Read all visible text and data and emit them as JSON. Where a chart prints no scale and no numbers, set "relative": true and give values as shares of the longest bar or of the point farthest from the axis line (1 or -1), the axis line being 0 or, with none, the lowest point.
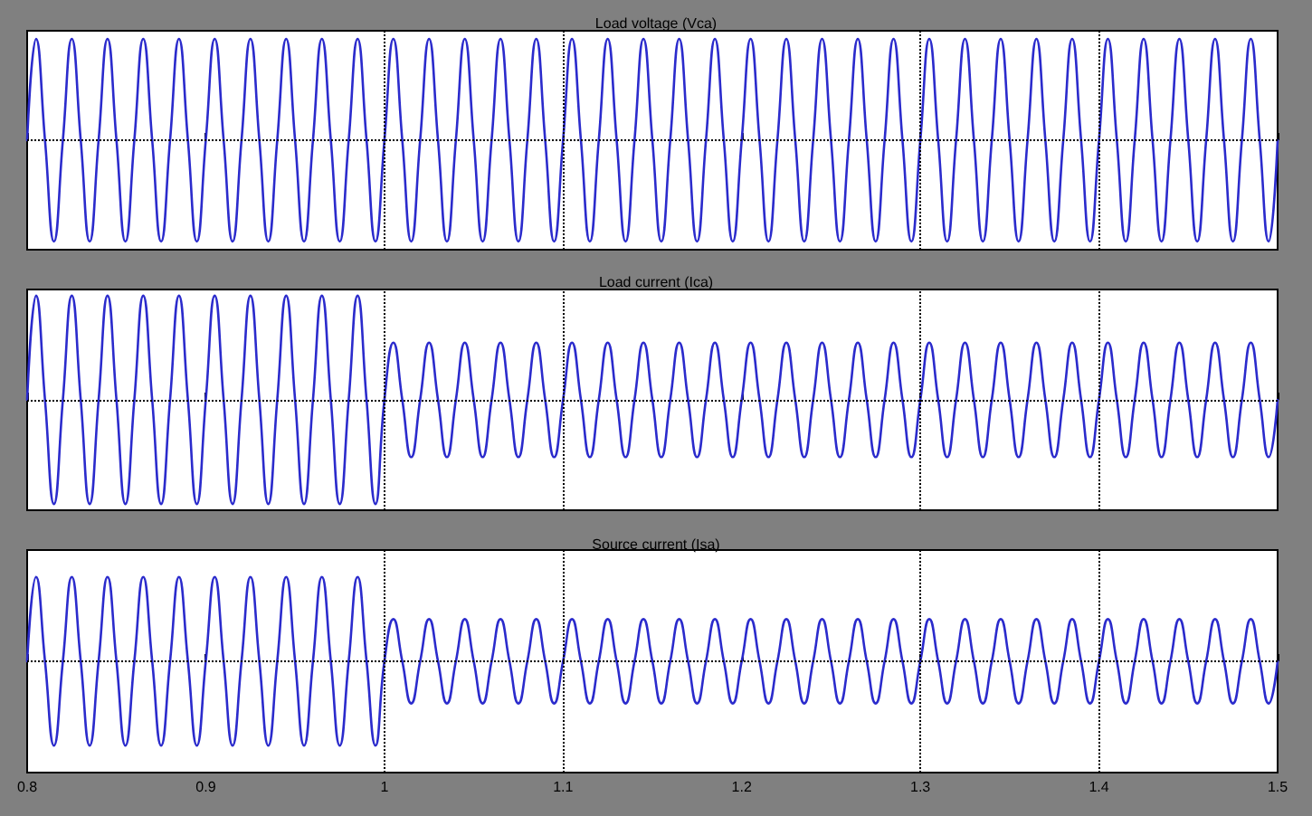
{
  "chart_data": [
    {
      "type": "line",
      "title": "Load voltage (Vca)",
      "relative": true,
      "color": "#2b2bcc",
      "line_style": "solid",
      "tick_labels": false,
      "xlim": [
        0.8,
        1.5
      ],
      "xticks": [
        0.8,
        0.9,
        1,
        1.1,
        1.2,
        1.3,
        1.4,
        1.5
      ],
      "ref_lines": [
        {
          "axis": "y",
          "value": 0,
          "color": "#000000",
          "line_style": "dotted"
        },
        {
          "axis": "x",
          "value": 1,
          "color": "#000000",
          "line_style": "dotted"
        },
        {
          "axis": "x",
          "value": 1.1,
          "color": "#000000",
          "line_style": "dotted"
        },
        {
          "axis": "x",
          "value": 1.3,
          "color": "#000000",
          "line_style": "dotted"
        },
        {
          "axis": "x",
          "value": 1.4,
          "color": "#000000",
          "line_style": "dotted"
        }
      ],
      "x": [
        0.8,
        0.805,
        0.81,
        0.815,
        0.82,
        0.825,
        0.83,
        0.835,
        0.84,
        0.845,
        0.85,
        0.855,
        0.86,
        0.865,
        0.87,
        0.875,
        0.88,
        0.885,
        0.89,
        0.895,
        0.9,
        0.905,
        0.91,
        0.915,
        0.92,
        0.925,
        0.93,
        0.935,
        0.94,
        0.945,
        0.95,
        0.955,
        0.96,
        0.965,
        0.97,
        0.975,
        0.98,
        0.985,
        0.99,
        0.995,
        1,
        1.005,
        1.01,
        1.015,
        1.02,
        1.025,
        1.03,
        1.035,
        1.04,
        1.045,
        1.05,
        1.055,
        1.06,
        1.065,
        1.07,
        1.075,
        1.08,
        1.085,
        1.09,
        1.095,
        1.1,
        1.105,
        1.11,
        1.115,
        1.12,
        1.125,
        1.13,
        1.135,
        1.14,
        1.145,
        1.15,
        1.155,
        1.16,
        1.165,
        1.17,
        1.175,
        1.18,
        1.185,
        1.19,
        1.195,
        1.2,
        1.205,
        1.21,
        1.215,
        1.22,
        1.225,
        1.23,
        1.235,
        1.24,
        1.245,
        1.25,
        1.255,
        1.26,
        1.265,
        1.27,
        1.275,
        1.28,
        1.285,
        1.29,
        1.295,
        1.3,
        1.305,
        1.31,
        1.315,
        1.32,
        1.325,
        1.33,
        1.335,
        1.34,
        1.345,
        1.35,
        1.355,
        1.36,
        1.365,
        1.37,
        1.375,
        1.38,
        1.385,
        1.39,
        1.395,
        1.4,
        1.405,
        1.41,
        1.415,
        1.42,
        1.425,
        1.43,
        1.435,
        1.44,
        1.445,
        1.45,
        1.455,
        1.46,
        1.465,
        1.47,
        1.475,
        1.48,
        1.485,
        1.49,
        1.495,
        1.5
      ],
      "values": [
        0,
        1,
        0,
        -1,
        0,
        1,
        0,
        -1,
        0,
        1,
        0,
        -1,
        0,
        1,
        0,
        -1,
        0,
        1,
        0,
        -1,
        0,
        1,
        0,
        -1,
        0,
        1,
        0,
        -1,
        0,
        1,
        0,
        -1,
        0,
        1,
        0,
        -1,
        0,
        1,
        0,
        -1,
        0,
        1,
        0,
        -1,
        0,
        1,
        0,
        -1,
        0,
        1,
        0,
        -1,
        0,
        1,
        0,
        -1,
        0,
        1,
        0,
        -1,
        0,
        1,
        0,
        -1,
        0,
        1,
        0,
        -1,
        0,
        1,
        0,
        -1,
        0,
        1,
        0,
        -1,
        0,
        1,
        0,
        -1,
        0,
        1,
        0,
        -1,
        0,
        1,
        0,
        -1,
        0,
        1,
        0,
        -1,
        0,
        1,
        0,
        -1,
        0,
        1,
        0,
        -1,
        0,
        1,
        0,
        -1,
        0,
        1,
        0,
        -1,
        0,
        1,
        0,
        -1,
        0,
        1,
        0,
        -1,
        0,
        1,
        0,
        -1,
        0,
        1,
        0,
        -1,
        0,
        1,
        0,
        -1,
        0,
        1,
        0,
        -1,
        0,
        1,
        0,
        -1,
        0,
        1,
        0,
        -1,
        0
      ]
    },
    {
      "type": "line",
      "title": "Load current (Ica)",
      "relative": true,
      "color": "#2b2bcc",
      "line_style": "solid",
      "tick_labels": false,
      "xlim": [
        0.8,
        1.5
      ],
      "xticks": [
        0.8,
        0.9,
        1,
        1.1,
        1.2,
        1.3,
        1.4,
        1.5
      ],
      "ref_lines": [
        {
          "axis": "y",
          "value": 0,
          "color": "#000000",
          "line_style": "dotted"
        },
        {
          "axis": "x",
          "value": 1,
          "color": "#000000",
          "line_style": "dotted"
        },
        {
          "axis": "x",
          "value": 1.1,
          "color": "#000000",
          "line_style": "dotted"
        },
        {
          "axis": "x",
          "value": 1.3,
          "color": "#000000",
          "line_style": "dotted"
        },
        {
          "axis": "x",
          "value": 1.4,
          "color": "#000000",
          "line_style": "dotted"
        }
      ],
      "x": [
        0.8,
        0.805,
        0.81,
        0.815,
        0.82,
        0.825,
        0.83,
        0.835,
        0.84,
        0.845,
        0.85,
        0.855,
        0.86,
        0.865,
        0.87,
        0.875,
        0.88,
        0.885,
        0.89,
        0.895,
        0.9,
        0.905,
        0.91,
        0.915,
        0.92,
        0.925,
        0.93,
        0.935,
        0.94,
        0.945,
        0.95,
        0.955,
        0.96,
        0.965,
        0.97,
        0.975,
        0.98,
        0.985,
        0.99,
        0.995,
        1,
        1.005,
        1.01,
        1.015,
        1.02,
        1.025,
        1.03,
        1.035,
        1.04,
        1.045,
        1.05,
        1.055,
        1.06,
        1.065,
        1.07,
        1.075,
        1.08,
        1.085,
        1.09,
        1.095,
        1.1,
        1.105,
        1.11,
        1.115,
        1.12,
        1.125,
        1.13,
        1.135,
        1.14,
        1.145,
        1.15,
        1.155,
        1.16,
        1.165,
        1.17,
        1.175,
        1.18,
        1.185,
        1.19,
        1.195,
        1.2,
        1.205,
        1.21,
        1.215,
        1.22,
        1.225,
        1.23,
        1.235,
        1.24,
        1.245,
        1.25,
        1.255,
        1.26,
        1.265,
        1.27,
        1.275,
        1.28,
        1.285,
        1.29,
        1.295,
        1.3,
        1.305,
        1.31,
        1.315,
        1.32,
        1.325,
        1.33,
        1.335,
        1.34,
        1.345,
        1.35,
        1.355,
        1.36,
        1.365,
        1.37,
        1.375,
        1.38,
        1.385,
        1.39,
        1.395,
        1.4,
        1.405,
        1.41,
        1.415,
        1.42,
        1.425,
        1.43,
        1.435,
        1.44,
        1.445,
        1.45,
        1.455,
        1.46,
        1.465,
        1.47,
        1.475,
        1.48,
        1.485,
        1.49,
        1.495,
        1.5
      ],
      "values": [
        0,
        1,
        0,
        -1,
        0,
        1,
        0,
        -1,
        0,
        1,
        0,
        -1,
        0,
        1,
        0,
        -1,
        0,
        1,
        0,
        -1,
        0,
        1,
        0,
        -1,
        0,
        1,
        0,
        -1,
        0,
        1,
        0,
        -1,
        0,
        1,
        0,
        -1,
        0,
        1,
        0,
        -1,
        0,
        0.55,
        0,
        -0.55,
        0,
        0.55,
        0,
        -0.55,
        0,
        0.55,
        0,
        -0.55,
        0,
        0.55,
        0,
        -0.55,
        0,
        0.55,
        0,
        -0.55,
        0,
        0.55,
        0,
        -0.55,
        0,
        0.55,
        0,
        -0.55,
        0,
        0.55,
        0,
        -0.55,
        0,
        0.55,
        0,
        -0.55,
        0,
        0.55,
        0,
        -0.55,
        0,
        0.55,
        0,
        -0.55,
        0,
        0.55,
        0,
        -0.55,
        0,
        0.55,
        0,
        -0.55,
        0,
        0.55,
        0,
        -0.55,
        0,
        0.55,
        0,
        -0.55,
        0,
        0.55,
        0,
        -0.55,
        0,
        0.55,
        0,
        -0.55,
        0,
        0.55,
        0,
        -0.55,
        0,
        0.55,
        0,
        -0.55,
        0,
        0.55,
        0,
        -0.55,
        0,
        0.55,
        0,
        -0.55,
        0,
        0.55,
        0,
        -0.55,
        0,
        0.55,
        0,
        -0.55,
        0,
        0.55,
        0,
        -0.55,
        0,
        0.55,
        0,
        -0.55,
        0
      ]
    },
    {
      "type": "line",
      "title": "Source current (Isa)",
      "relative": true,
      "color": "#2b2bcc",
      "line_style": "solid",
      "tick_labels": "x",
      "xlim": [
        0.8,
        1.5
      ],
      "xticks": [
        0.8,
        0.9,
        1,
        1.1,
        1.2,
        1.3,
        1.4,
        1.5
      ],
      "ref_lines": [
        {
          "axis": "y",
          "value": 0,
          "color": "#000000",
          "line_style": "dotted"
        },
        {
          "axis": "x",
          "value": 1,
          "color": "#000000",
          "line_style": "dotted"
        },
        {
          "axis": "x",
          "value": 1.1,
          "color": "#000000",
          "line_style": "dotted"
        },
        {
          "axis": "x",
          "value": 1.3,
          "color": "#000000",
          "line_style": "dotted"
        },
        {
          "axis": "x",
          "value": 1.4,
          "color": "#000000",
          "line_style": "dotted"
        }
      ],
      "x": [
        0.8,
        0.805,
        0.81,
        0.815,
        0.82,
        0.825,
        0.83,
        0.835,
        0.84,
        0.845,
        0.85,
        0.855,
        0.86,
        0.865,
        0.87,
        0.875,
        0.88,
        0.885,
        0.89,
        0.895,
        0.9,
        0.905,
        0.91,
        0.915,
        0.92,
        0.925,
        0.93,
        0.935,
        0.94,
        0.945,
        0.95,
        0.955,
        0.96,
        0.965,
        0.97,
        0.975,
        0.98,
        0.985,
        0.99,
        0.995,
        1,
        1.005,
        1.01,
        1.015,
        1.02,
        1.025,
        1.03,
        1.035,
        1.04,
        1.045,
        1.05,
        1.055,
        1.06,
        1.065,
        1.07,
        1.075,
        1.08,
        1.085,
        1.09,
        1.095,
        1.1,
        1.105,
        1.11,
        1.115,
        1.12,
        1.125,
        1.13,
        1.135,
        1.14,
        1.145,
        1.15,
        1.155,
        1.16,
        1.165,
        1.17,
        1.175,
        1.18,
        1.185,
        1.19,
        1.195,
        1.2,
        1.205,
        1.21,
        1.215,
        1.22,
        1.225,
        1.23,
        1.235,
        1.24,
        1.245,
        1.25,
        1.255,
        1.26,
        1.265,
        1.27,
        1.275,
        1.28,
        1.285,
        1.29,
        1.295,
        1.3,
        1.305,
        1.31,
        1.315,
        1.32,
        1.325,
        1.33,
        1.335,
        1.34,
        1.345,
        1.35,
        1.355,
        1.36,
        1.365,
        1.37,
        1.375,
        1.38,
        1.385,
        1.39,
        1.395,
        1.4,
        1.405,
        1.41,
        1.415,
        1.42,
        1.425,
        1.43,
        1.435,
        1.44,
        1.445,
        1.45,
        1.455,
        1.46,
        1.465,
        1.47,
        1.475,
        1.48,
        1.485,
        1.49,
        1.495,
        1.5
      ],
      "values": [
        0,
        1,
        0,
        -1,
        0,
        1,
        0,
        -1,
        0,
        1,
        0,
        -1,
        0,
        1,
        0,
        -1,
        0,
        1,
        0,
        -1,
        0,
        1,
        0,
        -1,
        0,
        1,
        0,
        -1,
        0,
        1,
        0,
        -1,
        0,
        1,
        0,
        -1,
        0,
        1,
        0,
        -1,
        0,
        0.5,
        0,
        -0.5,
        0,
        0.5,
        0,
        -0.5,
        0,
        0.5,
        0,
        -0.5,
        0,
        0.5,
        0,
        -0.5,
        0,
        0.5,
        0,
        -0.5,
        0,
        0.5,
        0,
        -0.5,
        0,
        0.5,
        0,
        -0.5,
        0,
        0.5,
        0,
        -0.5,
        0,
        0.5,
        0,
        -0.5,
        0,
        0.5,
        0,
        -0.5,
        0,
        0.5,
        0,
        -0.5,
        0,
        0.5,
        0,
        -0.5,
        0,
        0.5,
        0,
        -0.5,
        0,
        0.5,
        0,
        -0.5,
        0,
        0.5,
        0,
        -0.5,
        0,
        0.5,
        0,
        -0.5,
        0,
        0.5,
        0,
        -0.5,
        0,
        0.5,
        0,
        -0.5,
        0,
        0.5,
        0,
        -0.5,
        0,
        0.5,
        0,
        -0.5,
        0,
        0.5,
        0,
        -0.5,
        0,
        0.5,
        0,
        -0.5,
        0,
        0.5,
        0,
        -0.5,
        0,
        0.5,
        0,
        -0.5,
        0,
        0.5,
        0,
        -0.5,
        0
      ]
    }
  ]
}
